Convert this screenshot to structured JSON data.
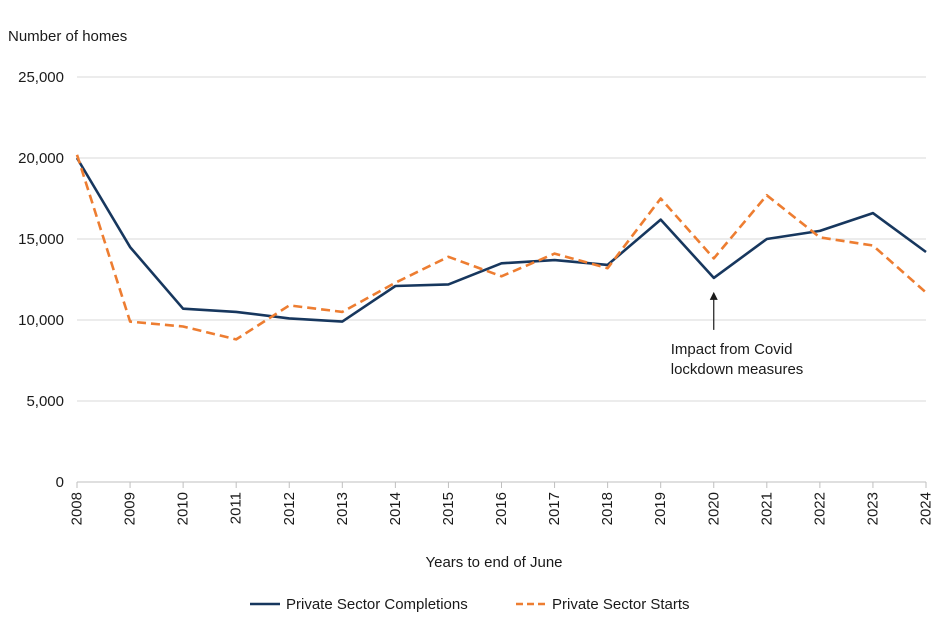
{
  "chart_data": {
    "type": "line",
    "title": "",
    "ylabel": "Number of homes",
    "xlabel": "Years to end of June",
    "ylim": [
      0,
      25000
    ],
    "yticks": [
      0,
      5000,
      10000,
      15000,
      20000,
      25000
    ],
    "ytick_labels": [
      "0",
      "5,000",
      "10,000",
      "15,000",
      "20,000",
      "25,000"
    ],
    "categories": [
      "2008",
      "2009",
      "2010",
      "2011",
      "2012",
      "2013",
      "2014",
      "2015",
      "2016",
      "2017",
      "2018",
      "2019",
      "2020",
      "2021",
      "2022",
      "2023",
      "2024"
    ],
    "grid": "horizontal",
    "legend_position": "bottom",
    "series": [
      {
        "name": "Private Sector Completions",
        "color": "#17375e",
        "style": "solid",
        "values": [
          20000,
          14500,
          10700,
          10500,
          10100,
          9900,
          12100,
          12200,
          13500,
          13700,
          13400,
          16200,
          12600,
          15000,
          15500,
          16600,
          14200
        ]
      },
      {
        "name": "Private Sector Starts",
        "color": "#ed7d31",
        "style": "dashed",
        "values": [
          20200,
          9900,
          9600,
          8800,
          10900,
          10500,
          12300,
          13900,
          12700,
          14100,
          13200,
          17500,
          13800,
          17700,
          15100,
          14600,
          11700
        ]
      }
    ],
    "annotations": [
      {
        "text_lines": [
          "Impact from Covid",
          "lockdown measures"
        ],
        "category": "2020",
        "value": 12600
      }
    ]
  }
}
